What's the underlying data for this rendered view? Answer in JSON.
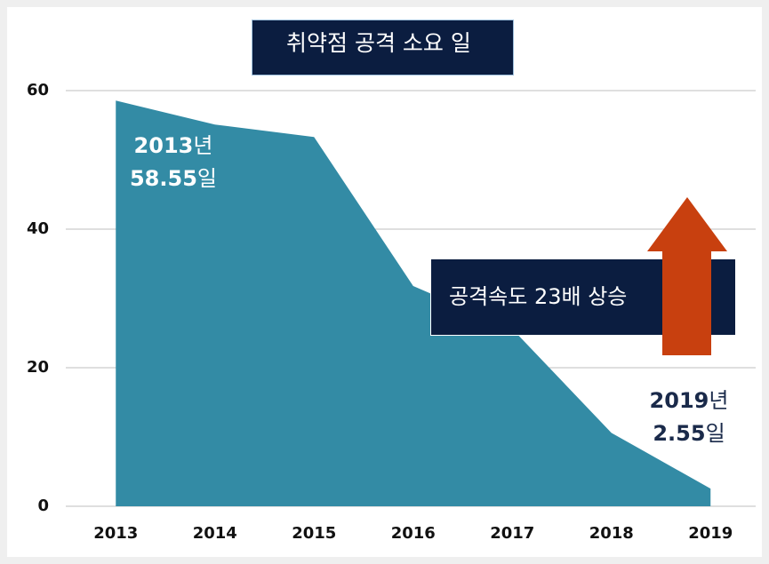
{
  "chart_data": {
    "type": "area",
    "title": "취약점 공격 소요 일",
    "categories": [
      "2013",
      "2014",
      "2015",
      "2016",
      "2017",
      "2018",
      "2019"
    ],
    "series": [
      {
        "name": "취약점 공격 소요 일",
        "color": "#338ba5",
        "values": [
          58.55,
          55.1,
          53.3,
          31.8,
          25.6,
          10.6,
          2.55
        ]
      }
    ],
    "ylim": [
      0,
      60
    ],
    "yticks": [
      0,
      20,
      40,
      60
    ],
    "grid": true,
    "annotations": [
      {
        "year": "2013",
        "year_unit": "년",
        "value": "58.55",
        "value_unit": "일"
      },
      {
        "year": "2019",
        "year_unit": "년",
        "value": "2.55",
        "value_unit": "일"
      }
    ],
    "callout": "공격속도 23배 상승",
    "arrow_color": "#c8400f"
  }
}
